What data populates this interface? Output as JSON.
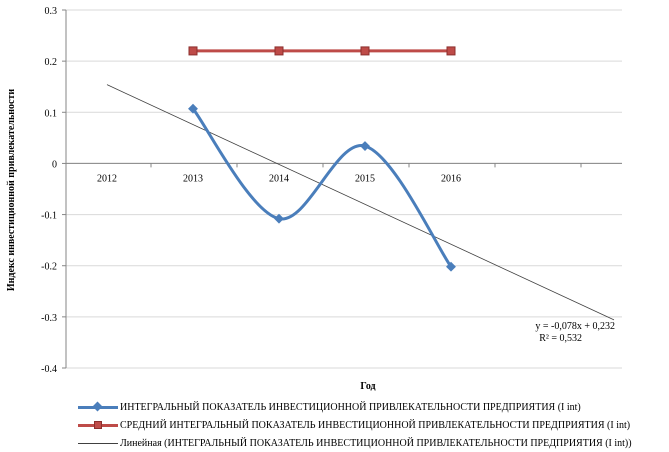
{
  "chart_data": {
    "type": "line",
    "categories": [
      "2012",
      "2013",
      "2014",
      "2015",
      "2016"
    ],
    "xlabel": "Год",
    "ylabel": "Индекс инвестиционной привлекательности",
    "ylim": [
      -0.4,
      0.3
    ],
    "yticks": [
      "0.3",
      "0.2",
      "0.1",
      "0",
      "-0.1",
      "-0.2",
      "-0.3",
      "-0.4"
    ],
    "ytick_values": [
      0.3,
      0.2,
      0.1,
      0,
      -0.1,
      -0.2,
      -0.3,
      -0.4
    ],
    "grid": true,
    "legend_position": "bottom",
    "series": [
      {
        "name": "ИНТЕГРАЛЬНЫЙ ПОКАЗАТЕЛЬ ИНВЕСТИЦИОННОЙ ПРИВЛЕКАТЕЛЬНОСТИ ПРЕДПРИЯТИЯ (I int)",
        "values": [
          null,
          0.107,
          -0.108,
          0.034,
          -0.202
        ],
        "color": "#4a7ebb",
        "marker": "diamond",
        "smooth": true
      },
      {
        "name": "СРЕДНИЙ ИНТЕГРАЛЬНЫЙ ПОКАЗАТЕЛЬ ИНВЕСТИЦИОННОЙ ПРИВЛЕКАТЕЛЬНОСТИ ПРЕДПРИЯТИЯ (I int)",
        "values": [
          null,
          0.22,
          0.22,
          0.22,
          0.22
        ],
        "color": "#be4b48",
        "marker": "square",
        "smooth": false
      }
    ],
    "trendline": {
      "name": "Линейная (ИНТЕГРАЛЬНЫЙ ПОКАЗАТЕЛЬ ИНВЕСТИЦИОННОЙ ПРИВЛЕКАТЕЛЬНОСТИ ПРЕДПРИЯТИЯ (I int))",
      "slope": -0.078,
      "intercept": 0.232,
      "x_from": 0.5,
      "x_to": 6.5,
      "color": "#404040",
      "equation": "y = -0,078x + 0,232",
      "r_squared": "R² = 0,532"
    }
  }
}
